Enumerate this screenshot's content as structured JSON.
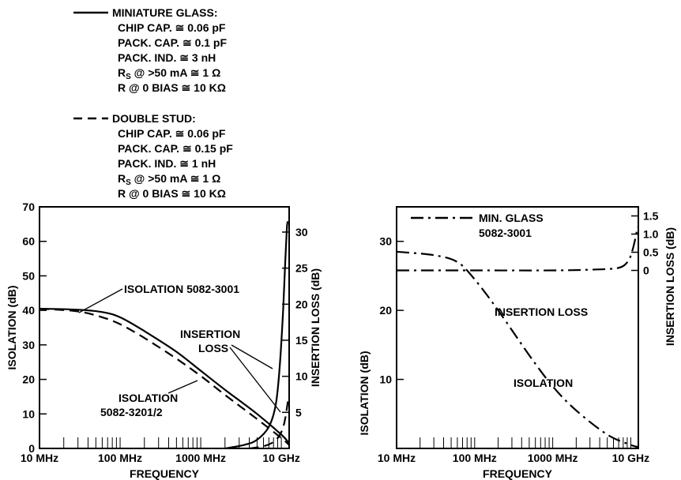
{
  "legend": {
    "miniature": {
      "title": "MINIATURE GLASS:",
      "lines": [
        {
          "main": "CHIP CAP. ≅ 0.06 pF"
        },
        {
          "main": "PACK. CAP. ≅ 0.1 pF"
        },
        {
          "main": "PACK. IND. ≅ 3 nH"
        },
        {
          "main": "R",
          "sub": "S",
          "rest": " @ >50 mA ≅ 1 Ω"
        },
        {
          "main": "R @ 0 BIAS ≅ 10 KΩ"
        }
      ]
    },
    "doublestud": {
      "title": "DOUBLE STUD:",
      "lines": [
        {
          "main": "CHIP CAP. ≅ 0.06 pF"
        },
        {
          "main": "PACK. CAP. ≅ 0.15 pF"
        },
        {
          "main": "PACK. IND. ≅ 1 nH"
        },
        {
          "main": "R",
          "sub": "S",
          "rest": " @ >50 mA ≅ 1 Ω"
        },
        {
          "main": "R @ 0 BIAS ≅ 10 KΩ"
        }
      ]
    }
  },
  "chart_data": [
    {
      "type": "line",
      "xscale": "log",
      "xlabel": "FREQUENCY",
      "ylabel": "ISOLATION (dB)",
      "y2label": "INSERTION LOSS (dB)",
      "xlim_mhz": [
        10,
        12500
      ],
      "ylim": [
        0,
        70
      ],
      "y2lim": [
        0,
        33.5
      ],
      "xticks": [
        "10 MHz",
        "100 MHz",
        "1000 MHz",
        "10 GHz"
      ],
      "xtick_values_mhz": [
        10,
        100,
        1000,
        10000
      ],
      "yticks": [
        0,
        10,
        20,
        30,
        40,
        50,
        60,
        70
      ],
      "y2ticks": [
        5,
        10,
        15,
        20,
        25,
        30
      ],
      "annotations": [
        {
          "text": "ISOLATION 5082-3001"
        },
        {
          "text": "INSERTION"
        },
        {
          "text": "LOSS"
        },
        {
          "text": "ISOLATION"
        },
        {
          "text": "5082-3201/2"
        }
      ],
      "series": [
        {
          "name": "ISOLATION 5082-3001",
          "axis": "left",
          "style": "solid",
          "x_mhz": [
            10,
            30,
            60,
            100,
            200,
            500,
            1000,
            2000,
            5000,
            10000,
            12500
          ],
          "y": [
            40.5,
            40.2,
            39.5,
            38,
            34,
            28,
            22.5,
            17,
            10,
            4,
            1.5
          ]
        },
        {
          "name": "ISOLATION 5082-3201/2",
          "axis": "left",
          "style": "dashed",
          "x_mhz": [
            10,
            30,
            60,
            100,
            200,
            500,
            1000,
            2000,
            5000,
            10000,
            12500
          ],
          "y": [
            40.5,
            39.7,
            38,
            36,
            32,
            26,
            21,
            15.5,
            8.5,
            3,
            1
          ]
        },
        {
          "name": "INSERTION LOSS MINIATURE GLASS",
          "axis": "right",
          "style": "solid",
          "x_mhz": [
            2000,
            3500,
            5000,
            7000,
            8500,
            9500,
            10500,
            11200,
            11700,
            12000
          ],
          "y": [
            0,
            0.5,
            1.2,
            3,
            6,
            11,
            19,
            26,
            30.5,
            31.5
          ]
        },
        {
          "name": "INSERTION LOSS DOUBLE STUD",
          "axis": "right",
          "style": "dashed",
          "x_mhz": [
            4000,
            6000,
            8000,
            9500,
            10500,
            11200,
            11800,
            12200
          ],
          "y": [
            0,
            0.3,
            0.9,
            1.8,
            2.9,
            4.2,
            5.8,
            7
          ]
        }
      ]
    },
    {
      "type": "line",
      "xscale": "log",
      "xlabel": "FREQUENCY",
      "ylabel": "ISOLATION (dB)",
      "y2label": "INSERTION LOSS (dB)",
      "xlim_mhz": [
        10,
        12500
      ],
      "ylim": [
        0,
        35
      ],
      "y2lim": [
        -4.9,
        1.75
      ],
      "xticks": [
        "10 MHz",
        "100 MHz",
        "1000 MHz",
        "10 GHz"
      ],
      "xtick_values_mhz": [
        10,
        100,
        1000,
        10000
      ],
      "yticks": [
        10,
        20,
        30
      ],
      "y2ticks": [
        0,
        0.5,
        1.0,
        1.5
      ],
      "legend": {
        "style": "dash-dot",
        "lines": [
          "MIN. GLASS",
          "5082-3001"
        ]
      },
      "annotations": [
        {
          "text": "INSERTION LOSS"
        },
        {
          "text": "ISOLATION"
        }
      ],
      "series": [
        {
          "name": "ISOLATION",
          "axis": "left",
          "style": "dash-dot",
          "x_mhz": [
            10,
            30,
            60,
            100,
            200,
            500,
            1000,
            2000,
            5000,
            10000,
            12500
          ],
          "y": [
            28.5,
            28,
            27,
            24.5,
            20,
            13.5,
            9,
            5.5,
            2,
            0.5,
            0.2
          ]
        },
        {
          "name": "INSERTION LOSS",
          "axis": "right",
          "style": "dash-dot",
          "x_mhz": [
            10,
            100,
            1000,
            3000,
            6000,
            8000,
            9500,
            10500,
            11500,
            12200
          ],
          "y": [
            0,
            0,
            0,
            0.02,
            0.05,
            0.12,
            0.3,
            0.55,
            0.9,
            1.2
          ]
        }
      ]
    }
  ]
}
